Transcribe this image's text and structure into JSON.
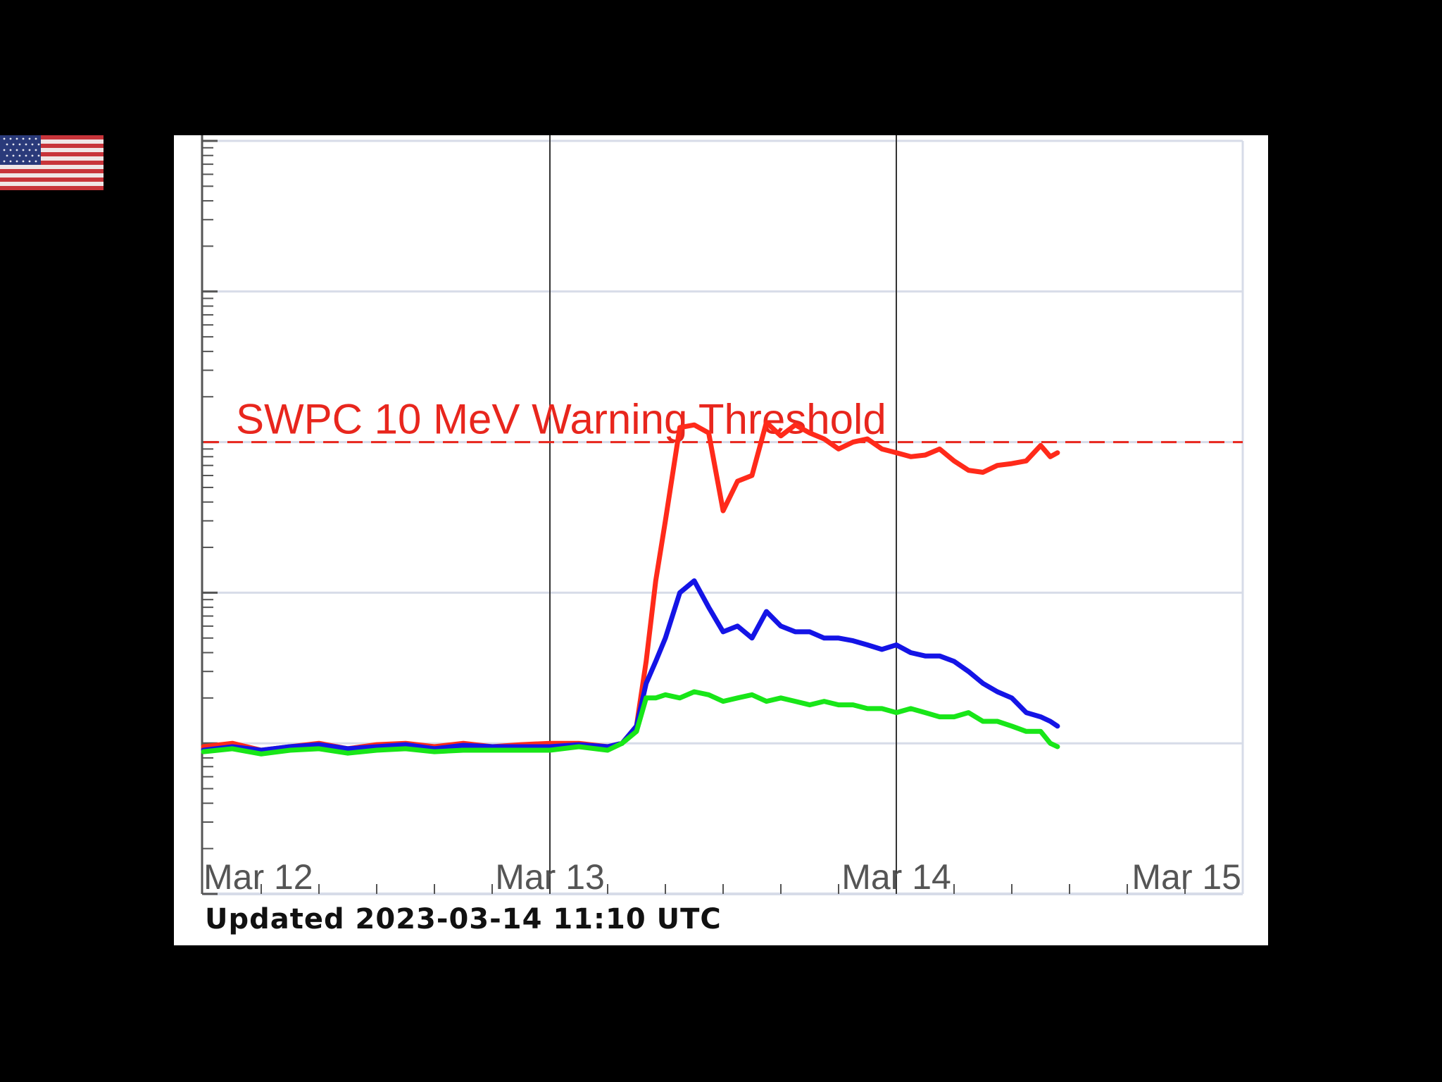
{
  "colors": {
    "background": "#000000",
    "panel": "#ffffff",
    "grid": "#d7dce8",
    "day_line": "#333333",
    "axis": "#555555",
    "threshold": "#e8261d",
    "tick_text": "#555555"
  },
  "flag": {
    "icon": "us-flag-icon"
  },
  "updated_text": "Updated 2023-03-14 11:10 UTC",
  "chart_data": {
    "type": "line",
    "title": "",
    "xlabel": "",
    "ylabel": "",
    "x_ticks": [
      "Mar 12",
      "Mar 13",
      "Mar 14",
      "Mar 15"
    ],
    "xlim": [
      "2023-03-12 00:00",
      "2023-03-15 00:00"
    ],
    "y_scale": "log",
    "ylim": [
      0.01,
      1000
    ],
    "grid": true,
    "threshold": {
      "label": "SWPC 10 MeV Warning Threshold",
      "value": 10
    },
    "series": [
      {
        "color": "#ff2a1a",
        "x": [
          "2023-03-12 00:00",
          "2023-03-12 02:00",
          "2023-03-12 04:00",
          "2023-03-12 06:00",
          "2023-03-12 08:00",
          "2023-03-12 10:00",
          "2023-03-12 12:00",
          "2023-03-12 14:00",
          "2023-03-12 16:00",
          "2023-03-12 18:00",
          "2023-03-12 20:00",
          "2023-03-12 22:00",
          "2023-03-13 00:00",
          "2023-03-13 02:00",
          "2023-03-13 04:00",
          "2023-03-13 05:00",
          "2023-03-13 06:00",
          "2023-03-13 06:40",
          "2023-03-13 07:20",
          "2023-03-13 08:00",
          "2023-03-13 09:00",
          "2023-03-13 10:00",
          "2023-03-13 11:00",
          "2023-03-13 12:00",
          "2023-03-13 13:00",
          "2023-03-13 14:00",
          "2023-03-13 15:00",
          "2023-03-13 16:00",
          "2023-03-13 17:00",
          "2023-03-13 18:00",
          "2023-03-13 19:00",
          "2023-03-13 20:00",
          "2023-03-13 21:00",
          "2023-03-13 22:00",
          "2023-03-13 23:00",
          "2023-03-14 00:00",
          "2023-03-14 01:00",
          "2023-03-14 02:00",
          "2023-03-14 03:00",
          "2023-03-14 04:00",
          "2023-03-14 05:00",
          "2023-03-14 06:00",
          "2023-03-14 07:00",
          "2023-03-14 08:00",
          "2023-03-14 09:00",
          "2023-03-14 10:00",
          "2023-03-14 10:40",
          "2023-03-14 11:10"
        ],
        "y": [
          0.095,
          0.1,
          0.09,
          0.095,
          0.1,
          0.092,
          0.098,
          0.1,
          0.095,
          0.1,
          0.095,
          0.098,
          0.1,
          0.1,
          0.095,
          0.1,
          0.13,
          0.35,
          1.2,
          3.0,
          12.5,
          13.0,
          11.5,
          3.5,
          5.5,
          6.0,
          13.5,
          11.0,
          13.0,
          11.5,
          10.5,
          9.0,
          10.0,
          10.5,
          9.0,
          8.5,
          8.0,
          8.2,
          9.0,
          7.5,
          6.5,
          6.3,
          7.0,
          7.2,
          7.5,
          9.5,
          8.0,
          8.5
        ]
      },
      {
        "color": "#1414e6",
        "x": [
          "2023-03-12 00:00",
          "2023-03-12 02:00",
          "2023-03-12 04:00",
          "2023-03-12 06:00",
          "2023-03-12 08:00",
          "2023-03-12 10:00",
          "2023-03-12 12:00",
          "2023-03-12 14:00",
          "2023-03-12 16:00",
          "2023-03-12 18:00",
          "2023-03-12 20:00",
          "2023-03-12 22:00",
          "2023-03-13 00:00",
          "2023-03-13 02:00",
          "2023-03-13 04:00",
          "2023-03-13 05:00",
          "2023-03-13 06:00",
          "2023-03-13 06:40",
          "2023-03-13 07:20",
          "2023-03-13 08:00",
          "2023-03-13 09:00",
          "2023-03-13 10:00",
          "2023-03-13 11:00",
          "2023-03-13 12:00",
          "2023-03-13 13:00",
          "2023-03-13 14:00",
          "2023-03-13 15:00",
          "2023-03-13 16:00",
          "2023-03-13 17:00",
          "2023-03-13 18:00",
          "2023-03-13 19:00",
          "2023-03-13 20:00",
          "2023-03-13 21:00",
          "2023-03-13 22:00",
          "2023-03-13 23:00",
          "2023-03-14 00:00",
          "2023-03-14 01:00",
          "2023-03-14 02:00",
          "2023-03-14 03:00",
          "2023-03-14 04:00",
          "2023-03-14 05:00",
          "2023-03-14 06:00",
          "2023-03-14 07:00",
          "2023-03-14 08:00",
          "2023-03-14 09:00",
          "2023-03-14 10:00",
          "2023-03-14 10:40",
          "2023-03-14 11:10"
        ],
        "y": [
          0.09,
          0.095,
          0.09,
          0.095,
          0.098,
          0.092,
          0.095,
          0.098,
          0.092,
          0.097,
          0.095,
          0.095,
          0.095,
          0.098,
          0.095,
          0.1,
          0.13,
          0.25,
          0.35,
          0.5,
          1.0,
          1.2,
          0.8,
          0.55,
          0.6,
          0.5,
          0.75,
          0.6,
          0.55,
          0.55,
          0.5,
          0.5,
          0.48,
          0.45,
          0.42,
          0.45,
          0.4,
          0.38,
          0.38,
          0.35,
          0.3,
          0.25,
          0.22,
          0.2,
          0.16,
          0.15,
          0.14,
          0.13
        ]
      },
      {
        "color": "#18e618",
        "x": [
          "2023-03-12 00:00",
          "2023-03-12 02:00",
          "2023-03-12 04:00",
          "2023-03-12 06:00",
          "2023-03-12 08:00",
          "2023-03-12 10:00",
          "2023-03-12 12:00",
          "2023-03-12 14:00",
          "2023-03-12 16:00",
          "2023-03-12 18:00",
          "2023-03-12 20:00",
          "2023-03-12 22:00",
          "2023-03-13 00:00",
          "2023-03-13 02:00",
          "2023-03-13 04:00",
          "2023-03-13 05:00",
          "2023-03-13 06:00",
          "2023-03-13 06:40",
          "2023-03-13 07:20",
          "2023-03-13 08:00",
          "2023-03-13 09:00",
          "2023-03-13 10:00",
          "2023-03-13 11:00",
          "2023-03-13 12:00",
          "2023-03-13 13:00",
          "2023-03-13 14:00",
          "2023-03-13 15:00",
          "2023-03-13 16:00",
          "2023-03-13 17:00",
          "2023-03-13 18:00",
          "2023-03-13 19:00",
          "2023-03-13 20:00",
          "2023-03-13 21:00",
          "2023-03-13 22:00",
          "2023-03-13 23:00",
          "2023-03-14 00:00",
          "2023-03-14 01:00",
          "2023-03-14 02:00",
          "2023-03-14 03:00",
          "2023-03-14 04:00",
          "2023-03-14 05:00",
          "2023-03-14 06:00",
          "2023-03-14 07:00",
          "2023-03-14 08:00",
          "2023-03-14 09:00",
          "2023-03-14 10:00",
          "2023-03-14 10:40",
          "2023-03-14 11:10"
        ],
        "y": [
          0.088,
          0.092,
          0.085,
          0.09,
          0.092,
          0.086,
          0.09,
          0.092,
          0.088,
          0.09,
          0.09,
          0.09,
          0.09,
          0.095,
          0.09,
          0.1,
          0.12,
          0.2,
          0.2,
          0.21,
          0.2,
          0.22,
          0.21,
          0.19,
          0.2,
          0.21,
          0.19,
          0.2,
          0.19,
          0.18,
          0.19,
          0.18,
          0.18,
          0.17,
          0.17,
          0.16,
          0.17,
          0.16,
          0.15,
          0.15,
          0.16,
          0.14,
          0.14,
          0.13,
          0.12,
          0.12,
          0.1,
          0.095
        ]
      }
    ]
  }
}
